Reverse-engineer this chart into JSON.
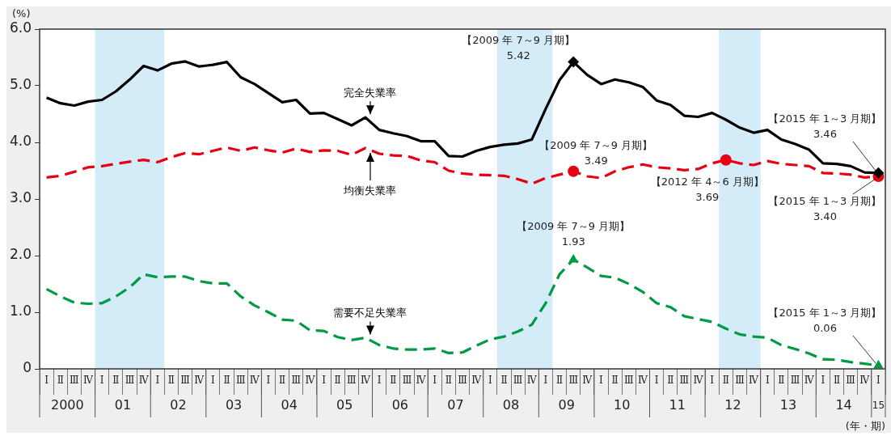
{
  "chart_data": {
    "type": "line",
    "ylabel": "(%)",
    "xlabel": "(年・期)",
    "categories": [
      "Ⅰ",
      "Ⅱ",
      "Ⅲ",
      "Ⅳ",
      "Ⅰ",
      "Ⅱ",
      "Ⅲ",
      "Ⅳ",
      "Ⅰ",
      "Ⅱ",
      "Ⅲ",
      "Ⅳ",
      "Ⅰ",
      "Ⅱ",
      "Ⅲ",
      "Ⅳ",
      "Ⅰ",
      "Ⅱ",
      "Ⅲ",
      "Ⅳ",
      "Ⅰ",
      "Ⅱ",
      "Ⅲ",
      "Ⅳ",
      "Ⅰ",
      "Ⅱ",
      "Ⅲ",
      "Ⅳ",
      "Ⅰ",
      "Ⅱ",
      "Ⅲ",
      "Ⅳ",
      "Ⅰ",
      "Ⅱ",
      "Ⅲ",
      "Ⅳ",
      "Ⅰ",
      "Ⅱ",
      "Ⅲ",
      "Ⅳ",
      "Ⅰ",
      "Ⅱ",
      "Ⅲ",
      "Ⅳ",
      "Ⅰ",
      "Ⅱ",
      "Ⅲ",
      "Ⅳ",
      "Ⅰ",
      "Ⅱ",
      "Ⅲ",
      "Ⅳ",
      "Ⅰ",
      "Ⅱ",
      "Ⅲ",
      "Ⅳ",
      "Ⅰ",
      "Ⅱ",
      "Ⅲ",
      "Ⅳ",
      "Ⅰ"
    ],
    "series": [
      {
        "name": "完全失業率",
        "color": "#000000",
        "line_style": "solid",
        "values": [
          4.79,
          4.69,
          4.65,
          4.72,
          4.75,
          4.9,
          5.11,
          5.35,
          5.27,
          5.39,
          5.43,
          5.34,
          5.37,
          5.42,
          5.15,
          5.03,
          4.87,
          4.71,
          4.75,
          4.51,
          4.52,
          4.41,
          4.3,
          4.44,
          4.22,
          4.16,
          4.11,
          4.02,
          4.02,
          3.76,
          3.75,
          3.85,
          3.92,
          3.96,
          3.98,
          4.05,
          4.59,
          5.1,
          5.42,
          5.19,
          5.03,
          5.11,
          5.06,
          4.98,
          4.74,
          4.66,
          4.47,
          4.45,
          4.52,
          4.4,
          4.26,
          4.17,
          4.22,
          4.05,
          3.97,
          3.87,
          3.63,
          3.62,
          3.58,
          3.47,
          3.46
        ]
      },
      {
        "name": "均衡失業率",
        "color": "#e60012",
        "line_style": "dashed",
        "values": [
          3.38,
          3.41,
          3.48,
          3.56,
          3.58,
          3.62,
          3.66,
          3.69,
          3.65,
          3.74,
          3.81,
          3.79,
          3.85,
          3.91,
          3.85,
          3.91,
          3.86,
          3.82,
          3.89,
          3.83,
          3.86,
          3.85,
          3.78,
          3.9,
          3.8,
          3.77,
          3.76,
          3.68,
          3.65,
          3.5,
          3.45,
          3.43,
          3.42,
          3.41,
          3.35,
          3.27,
          3.37,
          3.43,
          3.49,
          3.4,
          3.37,
          3.49,
          3.56,
          3.61,
          3.56,
          3.54,
          3.51,
          3.53,
          3.63,
          3.69,
          3.63,
          3.6,
          3.67,
          3.62,
          3.6,
          3.58,
          3.46,
          3.45,
          3.43,
          3.38,
          3.4
        ]
      },
      {
        "name": "需要不足失業率",
        "color": "#009944",
        "line_style": "dashed",
        "values": [
          1.41,
          1.28,
          1.17,
          1.15,
          1.16,
          1.28,
          1.44,
          1.67,
          1.62,
          1.63,
          1.63,
          1.55,
          1.51,
          1.51,
          1.28,
          1.12,
          1.0,
          0.87,
          0.85,
          0.68,
          0.67,
          0.56,
          0.51,
          0.55,
          0.42,
          0.36,
          0.34,
          0.34,
          0.36,
          0.28,
          0.29,
          0.41,
          0.52,
          0.57,
          0.66,
          0.78,
          1.16,
          1.67,
          1.93,
          1.79,
          1.64,
          1.61,
          1.5,
          1.36,
          1.16,
          1.09,
          0.93,
          0.88,
          0.83,
          0.71,
          0.61,
          0.57,
          0.55,
          0.42,
          0.35,
          0.27,
          0.17,
          0.16,
          0.12,
          0.09,
          0.06
        ]
      },
      {
        "type": "scatter",
        "color": "#000000",
        "marker": "diamond",
        "values": [
          null,
          null,
          null,
          null,
          null,
          null,
          null,
          null,
          null,
          null,
          null,
          null,
          null,
          null,
          null,
          null,
          null,
          null,
          null,
          null,
          null,
          null,
          null,
          null,
          null,
          null,
          null,
          null,
          null,
          null,
          null,
          null,
          null,
          null,
          null,
          null,
          null,
          null,
          5.42,
          null,
          null,
          null,
          null,
          null,
          null,
          null,
          null,
          null,
          null,
          null,
          null,
          null,
          null,
          null,
          null,
          null,
          null,
          null,
          null,
          null,
          3.46
        ]
      },
      {
        "type": "scatter",
        "color": "#e60012",
        "marker": "circle",
        "values": [
          null,
          null,
          null,
          null,
          null,
          null,
          null,
          null,
          null,
          null,
          null,
          null,
          null,
          null,
          null,
          null,
          null,
          null,
          null,
          null,
          null,
          null,
          null,
          null,
          null,
          null,
          null,
          null,
          null,
          null,
          null,
          null,
          null,
          null,
          null,
          null,
          null,
          null,
          3.49,
          null,
          null,
          null,
          null,
          null,
          null,
          null,
          null,
          null,
          null,
          3.69,
          null,
          null,
          null,
          null,
          null,
          null,
          null,
          null,
          null,
          null,
          3.4
        ]
      },
      {
        "type": "scatter",
        "color": "#009944",
        "marker": "triangle",
        "values": [
          null,
          null,
          null,
          null,
          null,
          null,
          null,
          null,
          null,
          null,
          null,
          null,
          null,
          null,
          null,
          null,
          null,
          null,
          null,
          null,
          null,
          null,
          null,
          null,
          null,
          null,
          null,
          null,
          null,
          null,
          null,
          null,
          null,
          null,
          null,
          null,
          null,
          null,
          1.93,
          null,
          null,
          null,
          null,
          null,
          null,
          null,
          null,
          null,
          null,
          null,
          null,
          null,
          null,
          null,
          null,
          null,
          null,
          null,
          null,
          null,
          0.06
        ]
      }
    ],
    "annotations": [
      "2000",
      "01",
      "02",
      "03",
      "04",
      "05",
      "06",
      "07",
      "08",
      "09",
      "10",
      "11",
      "12",
      "13",
      "14",
      "15",
      "【2009 年 7～9 月期】\n5.42",
      "【2009 年 7～9 月期】\n3.49",
      "【2009 年 7～9 月期】\n1.93",
      "【2012 年 4～6 月期】\n3.69",
      "【2015 年 1～3 月期】\n3.46",
      "【2015 年 1～3 月期】\n3.40",
      "【2015 年 1～3 月期】\n0.06"
    ],
    "ylim": [
      0,
      6
    ],
    "yticks": [
      0,
      {
        "value": 1,
        "label": "1.0"
      },
      {
        "value": 2,
        "label": "2.0"
      },
      {
        "value": 3,
        "label": "3.0"
      },
      {
        "value": 4,
        "label": "4.0"
      },
      {
        "value": 5,
        "label": "5.0"
      },
      {
        "value": 6,
        "label": "6.0"
      }
    ],
    "grid": false,
    "legend": false
  }
}
